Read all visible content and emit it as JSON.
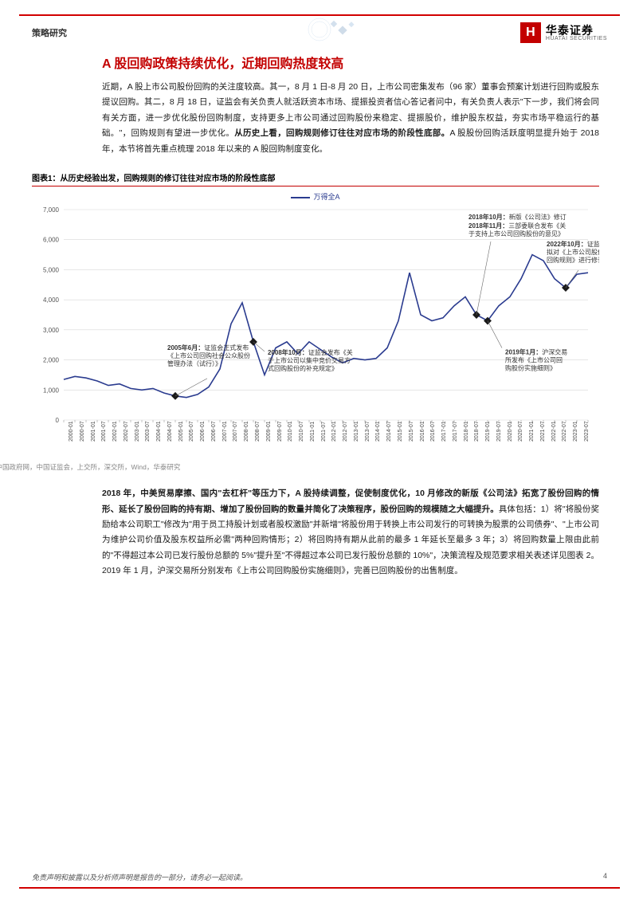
{
  "header": {
    "left": "策略研究",
    "logo_cn": "华泰证券",
    "logo_en": "HUATAI SECURITIES",
    "logo_mark": "H"
  },
  "title": "A 股回购政策持续优化，近期回购热度较高",
  "para1": "近期，A 股上市公司股份回购的关注度较高。其一，8 月 1 日-8 月 20 日，上市公司密集发布（96 家）董事会预案计划进行回购或股东提议回购。其二，8 月 18 日，证监会有关负责人就活跃资本市场、提振投资者信心答记者问中，有关负责人表示\"下一步，我们将会同有关方面，进一步优化股份回购制度，支持更多上市公司通过回购股份来稳定、提振股价，维护股东权益，夯实市场平稳运行的基础。\"，回购规则有望进一步优化。",
  "para1_bold": "从历史上看，回购规则修订往往对应市场的阶段性底部。",
  "para1_tail": "A 股股份回购活跃度明显提升始于 2018 年，本节将首先重点梳理 2018 年以来的 A 股回购制度变化。",
  "chart_caption": "图表1：从历史经验出发，回购规则的修订往往对应市场的阶段性底部",
  "legend_label": "万得全A",
  "chart_source": "资料来源：中国政府网，中国证监会，上交所，深交所，Wind，华泰研究",
  "para2_lead": "2018 年，中美贸易摩擦、国内\"去杠杆\"等压力下，A 股持续调整，促使制度优化，10 月修改的新版《公司法》拓宽了股份回购的情形、延长了股份回购的持有期、增加了股份回购的数量并简化了决策程序，股份回购的规模随之大幅提升。",
  "para2_body": "具体包括：1）将\"将股份奖励给本公司职工\"修改为\"用于员工持股计划或者股权激励\"并新增\"将股份用于转换上市公司发行的可转换为股票的公司债券\"、\"上市公司为维护公司价值及股东权益所必需\"两种回购情形；2）将回购持有期从此前的最多 1 年延长至最多 3 年；3）将回购数量上限由此前的\"不得超过本公司已发行股份总额的 5%\"提升至\"不得超过本公司已发行股份总额的 10%\"，决策流程及规范要求相关表述详见图表 2。2019 年 1 月，沪深交易所分别发布《上市公司回购股份实施细则》，完善已回购股份的出售制度。",
  "footer": {
    "disclaimer": "免责声明和披露以及分析师声明是报告的一部分，请务必一起阅读。",
    "page": "4"
  },
  "chart": {
    "type": "line",
    "series_color": "#2a3b8f",
    "marker_color": "#1a1a1a",
    "grid_color": "#d8d8d8",
    "axis_color": "#888",
    "background_color": "#ffffff",
    "ylim": [
      0,
      7000
    ],
    "ytick_step": 1000,
    "yticks": [
      "0",
      "1,000",
      "2,000",
      "3,000",
      "4,000",
      "5,000",
      "6,000",
      "7,000"
    ],
    "xticks": [
      "2000-01",
      "2000-07",
      "2001-01",
      "2001-07",
      "2002-01",
      "2002-07",
      "2003-01",
      "2003-07",
      "2004-01",
      "2004-07",
      "2005-01",
      "2005-07",
      "2006-01",
      "2006-07",
      "2007-01",
      "2007-07",
      "2008-01",
      "2008-07",
      "2009-01",
      "2009-07",
      "2010-01",
      "2010-07",
      "2011-01",
      "2011-07",
      "2012-01",
      "2012-07",
      "2013-01",
      "2013-07",
      "2014-01",
      "2014-07",
      "2015-01",
      "2015-07",
      "2016-01",
      "2016-07",
      "2017-01",
      "2017-07",
      "2018-01",
      "2018-07",
      "2019-01",
      "2019-07",
      "2020-01",
      "2020-07",
      "2021-01",
      "2021-07",
      "2022-01",
      "2022-07",
      "2023-01",
      "2023-07"
    ],
    "values": [
      1350,
      1450,
      1400,
      1300,
      1150,
      1200,
      1050,
      1000,
      1050,
      900,
      800,
      750,
      850,
      1100,
      1700,
      3200,
      3900,
      2600,
      1500,
      2400,
      2600,
      2200,
      2600,
      2350,
      2100,
      1900,
      2050,
      2000,
      2050,
      2400,
      3300,
      4900,
      3500,
      3300,
      3400,
      3800,
      4100,
      3500,
      3300,
      3800,
      4100,
      4700,
      5500,
      5300,
      4700,
      4400,
      4850,
      4900
    ],
    "markers_idx": [
      10,
      17,
      37,
      38,
      45
    ],
    "annotations": {
      "a2005": {
        "t1": "2005年6月：",
        "t2": "证监会正式发布",
        "t3": "《上市公司回购社会公众股份",
        "t4": "管理办法（试行）》"
      },
      "a2008": {
        "t1": "2008年10月：",
        "t2": "证监会发布《关",
        "t3": "于上市公司以集中竞价交易方",
        "t4": "式回购股份的补充规定》"
      },
      "a2018a": {
        "t1": "2018年10月：",
        "t2": "新版《公司法》修订"
      },
      "a2018b": {
        "t1": "2018年11月：",
        "t2": "三部委联合发布《关",
        "t3": "于支持上市公司回购股份的意见》"
      },
      "a2019": {
        "t1": "2019年1月：",
        "t2": "沪深交易",
        "t3": "所发布《上市公司回",
        "t4": "购股份实施细则》"
      },
      "a2022": {
        "t1": "2022年10月：",
        "t2": "证监会",
        "t3": "拟对《上市公司股份",
        "t4": "回购规则》进行修订"
      }
    }
  }
}
